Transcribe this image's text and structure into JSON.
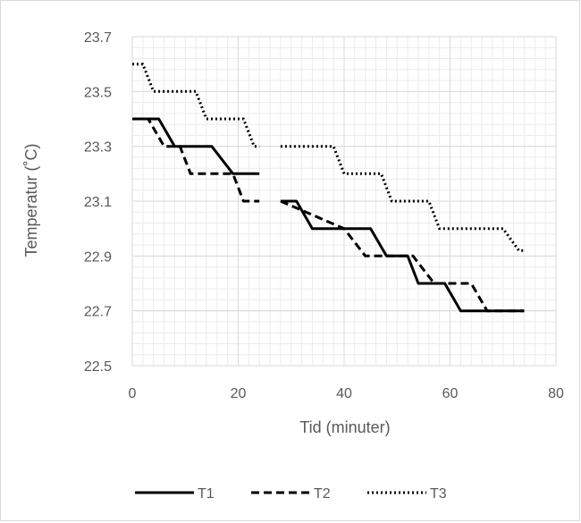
{
  "chart_data": {
    "type": "line",
    "title": "",
    "xlabel": "Tid (minuter)",
    "ylabel": "Temperatur (˚C)",
    "xlim": [
      0,
      80
    ],
    "ylim": [
      22.5,
      23.7
    ],
    "x_ticks": [
      0,
      20,
      40,
      60,
      80
    ],
    "x_tick_labels": [
      "0",
      "20",
      "40",
      "60",
      "80"
    ],
    "y_ticks": [
      22.5,
      22.7,
      22.9,
      23.1,
      23.3,
      23.5,
      23.7
    ],
    "y_tick_labels": [
      "22.5",
      "22.7",
      "22.9",
      "23.1",
      "23.3",
      "23.5",
      "23.7"
    ],
    "grid": true,
    "legend_position": "bottom",
    "series": [
      {
        "name": "T1",
        "style": "solid",
        "color": "#000000",
        "x": [
          0,
          5,
          8,
          15,
          19,
          24
        ],
        "y": [
          23.4,
          23.4,
          23.3,
          23.3,
          23.2,
          23.2
        ],
        "segments": [
          {
            "x": [
              0,
              5,
              8,
              15,
              19,
              24
            ],
            "y": [
              23.4,
              23.4,
              23.3,
              23.3,
              23.2,
              23.2
            ]
          },
          {
            "x": [
              28,
              31,
              34,
              45,
              48,
              52,
              54,
              59,
              62,
              74
            ],
            "y": [
              23.1,
              23.1,
              23.0,
              23.0,
              22.9,
              22.9,
              22.8,
              22.8,
              22.7,
              22.7
            ]
          }
        ]
      },
      {
        "name": "T2",
        "style": "dashed",
        "color": "#000000",
        "segments": [
          {
            "x": [
              0,
              3,
              6,
              9,
              11,
              19,
              21,
              24
            ],
            "y": [
              23.4,
              23.4,
              23.3,
              23.3,
              23.2,
              23.2,
              23.1,
              23.1
            ]
          },
          {
            "x": [
              28,
              40,
              44,
              53,
              57,
              64,
              67,
              74
            ],
            "y": [
              23.1,
              23.0,
              22.9,
              22.9,
              22.8,
              22.8,
              22.7,
              22.7
            ]
          }
        ]
      },
      {
        "name": "T3",
        "style": "dotted",
        "color": "#000000",
        "segments": [
          {
            "x": [
              0,
              2,
              4,
              12,
              14,
              21,
              23,
              24
            ],
            "y": [
              23.6,
              23.6,
              23.5,
              23.5,
              23.4,
              23.4,
              23.3,
              23.3
            ]
          },
          {
            "x": [
              28,
              38,
              40,
              47,
              49,
              56,
              58,
              70,
              73,
              74
            ],
            "y": [
              23.3,
              23.3,
              23.2,
              23.2,
              23.1,
              23.1,
              23.0,
              23.0,
              22.92,
              22.92
            ]
          }
        ]
      }
    ]
  }
}
